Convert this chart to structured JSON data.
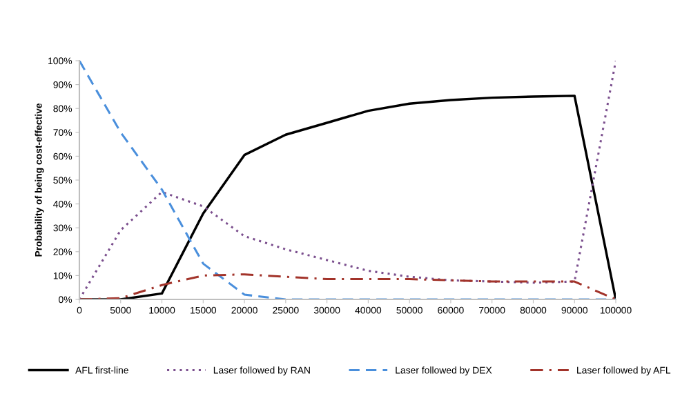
{
  "chart_data": {
    "type": "line",
    "ylabel": "Probability of being cost-effective",
    "categories": [
      "0",
      "5000",
      "10000",
      "15000",
      "20000",
      "25000",
      "30000",
      "40000",
      "50000",
      "60000",
      "70000",
      "80000",
      "90000",
      "100000"
    ],
    "ylim": [
      0,
      100
    ],
    "yticks": [
      {
        "value": 0,
        "label": "0%"
      },
      {
        "value": 10,
        "label": "10%"
      },
      {
        "value": 20,
        "label": "20%"
      },
      {
        "value": 30,
        "label": "30%"
      },
      {
        "value": 40,
        "label": "40%"
      },
      {
        "value": 50,
        "label": "50%"
      },
      {
        "value": 60,
        "label": "60%"
      },
      {
        "value": 70,
        "label": "70%"
      },
      {
        "value": 80,
        "label": "80%"
      },
      {
        "value": 90,
        "label": "90%"
      },
      {
        "value": 100,
        "label": "100%"
      }
    ],
    "grid": false,
    "legend": "bottom",
    "marker": "none",
    "series": [
      {
        "name": "AFL first-line",
        "color": "#000000",
        "line_style": "solid",
        "values": [
          0,
          0,
          2.5,
          36,
          60.5,
          69,
          74,
          79,
          82,
          83.5,
          84.5,
          85,
          85.3,
          0
        ]
      },
      {
        "name": "Laser followed by RAN",
        "color": "#7b4f8e",
        "line_style": "dotted",
        "values": [
          0,
          29,
          45,
          39,
          26.5,
          21,
          16.5,
          12,
          9.5,
          8,
          7.5,
          7,
          7.5,
          100
        ]
      },
      {
        "name": "Laser followed by DEX",
        "color": "#4a8fdc",
        "line_style": "dashed",
        "values": [
          100,
          70,
          46,
          15,
          2,
          0,
          0,
          0,
          0,
          0,
          0,
          0,
          0,
          0
        ]
      },
      {
        "name": "Laser followed by AFL",
        "color": "#a2332a",
        "line_style": "dashdot",
        "values": [
          0,
          0.5,
          6,
          10,
          10.5,
          9.5,
          8.5,
          8.5,
          8.5,
          8,
          7.5,
          7.5,
          7.5,
          0
        ]
      }
    ]
  }
}
